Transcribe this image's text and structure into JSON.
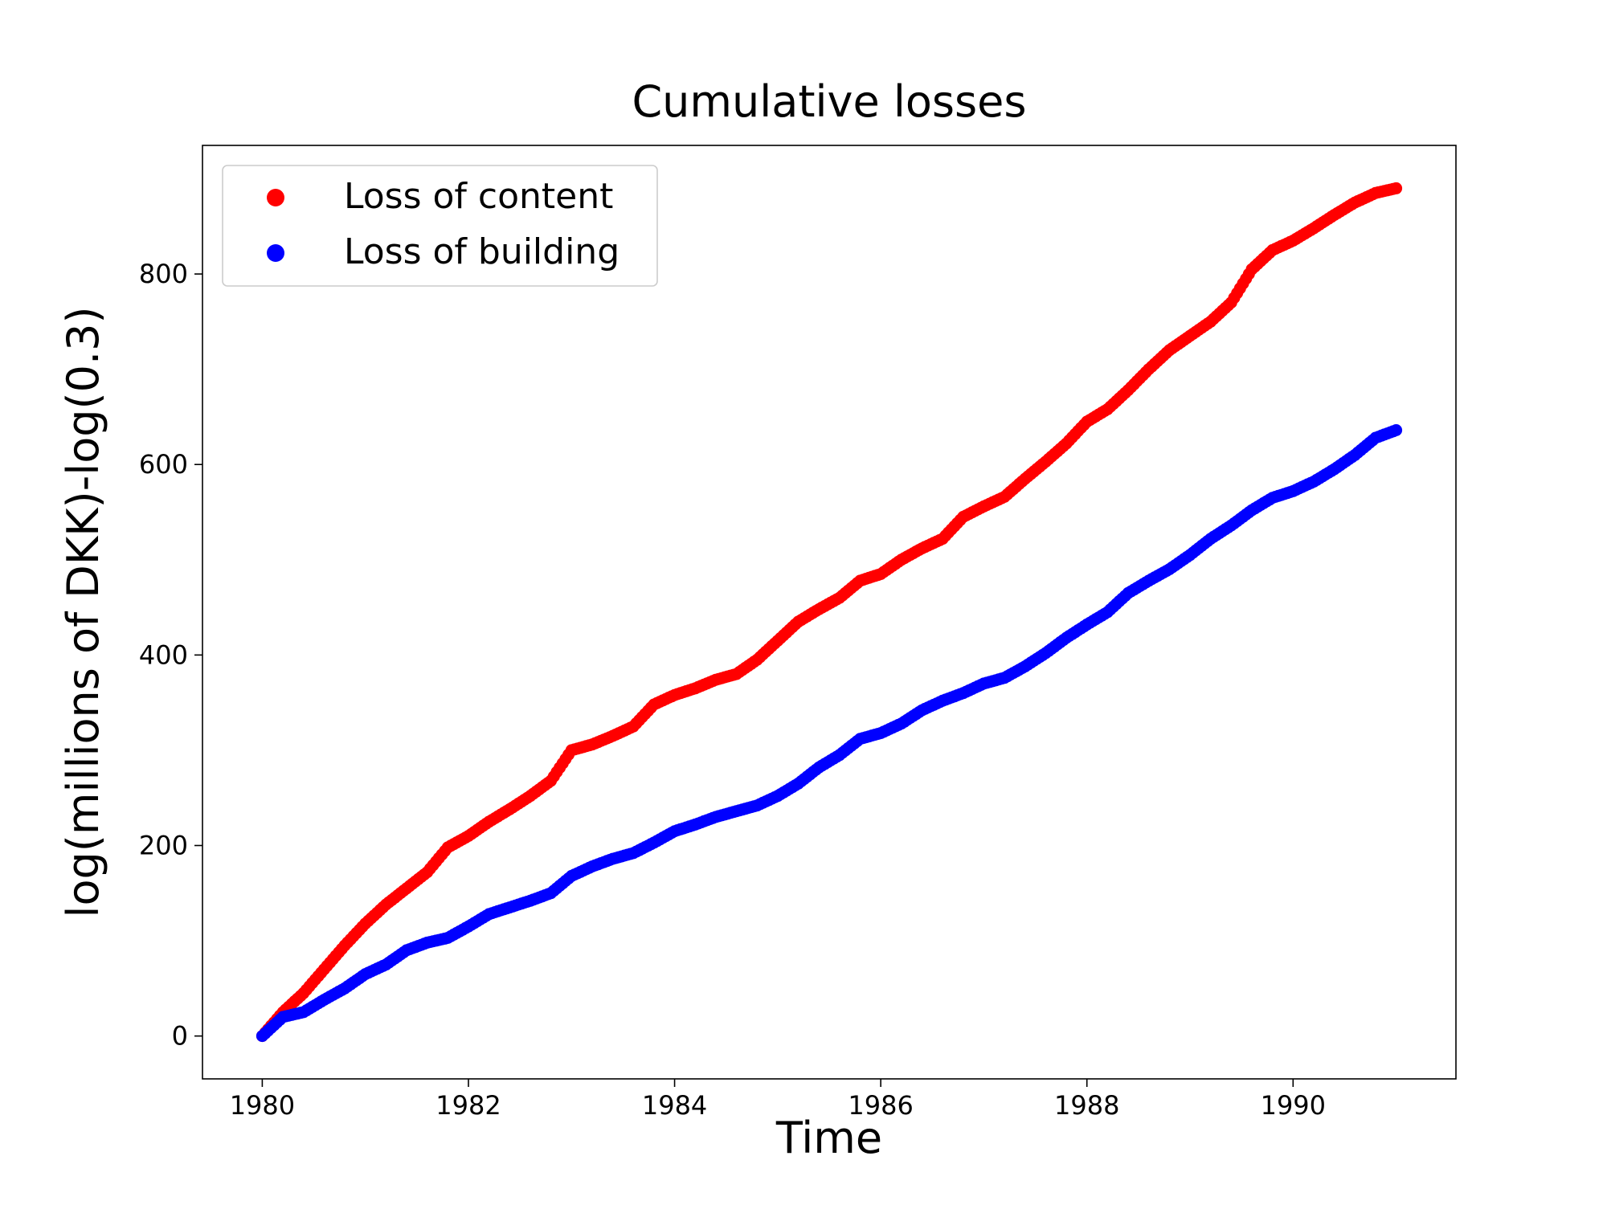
{
  "chart_data": {
    "type": "scatter",
    "title": "Cumulative losses",
    "xlabel": "Time",
    "ylabel": "log(millions of DKK)-log(0.3)",
    "xlim": [
      1979.42,
      1991.58
    ],
    "ylim": [
      -45,
      935
    ],
    "xticks": [
      1980,
      1982,
      1984,
      1986,
      1988,
      1990
    ],
    "yticks": [
      0,
      200,
      400,
      600,
      800
    ],
    "legend_position": "top-left",
    "grid": false,
    "series": [
      {
        "name": "Loss of content",
        "color": "#ff0000",
        "points": [
          [
            1980.0,
            0
          ],
          [
            1980.2,
            25
          ],
          [
            1980.4,
            45
          ],
          [
            1980.6,
            70
          ],
          [
            1980.8,
            95
          ],
          [
            1981.0,
            118
          ],
          [
            1981.2,
            138
          ],
          [
            1981.4,
            155
          ],
          [
            1981.6,
            172
          ],
          [
            1981.8,
            198
          ],
          [
            1982.0,
            210
          ],
          [
            1982.2,
            225
          ],
          [
            1982.4,
            238
          ],
          [
            1982.6,
            252
          ],
          [
            1982.8,
            268
          ],
          [
            1983.0,
            300
          ],
          [
            1983.2,
            306
          ],
          [
            1983.4,
            315
          ],
          [
            1983.6,
            325
          ],
          [
            1983.8,
            348
          ],
          [
            1984.0,
            358
          ],
          [
            1984.2,
            365
          ],
          [
            1984.4,
            374
          ],
          [
            1984.6,
            380
          ],
          [
            1984.8,
            395
          ],
          [
            1985.0,
            415
          ],
          [
            1985.2,
            435
          ],
          [
            1985.4,
            448
          ],
          [
            1985.6,
            460
          ],
          [
            1985.8,
            478
          ],
          [
            1986.0,
            485
          ],
          [
            1986.2,
            500
          ],
          [
            1986.4,
            512
          ],
          [
            1986.6,
            522
          ],
          [
            1986.8,
            545
          ],
          [
            1987.0,
            556
          ],
          [
            1987.2,
            566
          ],
          [
            1987.4,
            585
          ],
          [
            1987.6,
            603
          ],
          [
            1987.8,
            622
          ],
          [
            1988.0,
            645
          ],
          [
            1988.2,
            658
          ],
          [
            1988.4,
            678
          ],
          [
            1988.6,
            700
          ],
          [
            1988.8,
            720
          ],
          [
            1989.0,
            735
          ],
          [
            1989.2,
            750
          ],
          [
            1989.4,
            770
          ],
          [
            1989.6,
            805
          ],
          [
            1989.8,
            825
          ],
          [
            1990.0,
            835
          ],
          [
            1990.2,
            848
          ],
          [
            1990.4,
            862
          ],
          [
            1990.6,
            875
          ],
          [
            1990.8,
            885
          ],
          [
            1991.0,
            890
          ]
        ]
      },
      {
        "name": "Loss of building",
        "color": "#0000ff",
        "points": [
          [
            1980.0,
            0
          ],
          [
            1980.2,
            20
          ],
          [
            1980.4,
            25
          ],
          [
            1980.6,
            38
          ],
          [
            1980.8,
            50
          ],
          [
            1981.0,
            65
          ],
          [
            1981.2,
            75
          ],
          [
            1981.4,
            90
          ],
          [
            1981.6,
            98
          ],
          [
            1981.8,
            103
          ],
          [
            1982.0,
            115
          ],
          [
            1982.2,
            128
          ],
          [
            1982.4,
            135
          ],
          [
            1982.6,
            142
          ],
          [
            1982.8,
            150
          ],
          [
            1983.0,
            168
          ],
          [
            1983.2,
            178
          ],
          [
            1983.4,
            186
          ],
          [
            1983.6,
            192
          ],
          [
            1983.8,
            203
          ],
          [
            1984.0,
            215
          ],
          [
            1984.2,
            222
          ],
          [
            1984.4,
            230
          ],
          [
            1984.6,
            236
          ],
          [
            1984.8,
            242
          ],
          [
            1985.0,
            252
          ],
          [
            1985.2,
            265
          ],
          [
            1985.4,
            282
          ],
          [
            1985.6,
            295
          ],
          [
            1985.8,
            312
          ],
          [
            1986.0,
            318
          ],
          [
            1986.2,
            328
          ],
          [
            1986.4,
            342
          ],
          [
            1986.6,
            352
          ],
          [
            1986.8,
            360
          ],
          [
            1987.0,
            370
          ],
          [
            1987.2,
            376
          ],
          [
            1987.4,
            388
          ],
          [
            1987.6,
            402
          ],
          [
            1987.8,
            418
          ],
          [
            1988.0,
            432
          ],
          [
            1988.2,
            445
          ],
          [
            1988.4,
            465
          ],
          [
            1988.6,
            478
          ],
          [
            1988.8,
            490
          ],
          [
            1989.0,
            505
          ],
          [
            1989.2,
            522
          ],
          [
            1989.4,
            536
          ],
          [
            1989.6,
            552
          ],
          [
            1989.8,
            565
          ],
          [
            1990.0,
            572
          ],
          [
            1990.2,
            582
          ],
          [
            1990.4,
            595
          ],
          [
            1990.6,
            610
          ],
          [
            1990.8,
            628
          ],
          [
            1991.0,
            636
          ]
        ]
      }
    ]
  }
}
